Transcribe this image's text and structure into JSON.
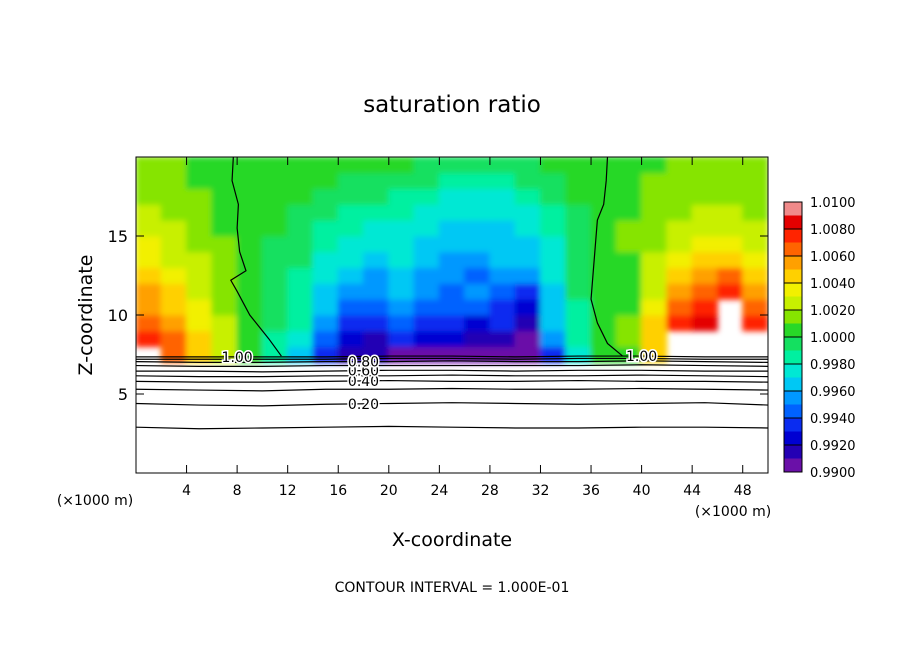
{
  "chart_data": {
    "type": "contour",
    "title": "saturation ratio",
    "x_label": "X-coordinate",
    "y_label": "Z-coordinate",
    "x_unit": "(×1000 m)",
    "y_unit": "(×1000 m)",
    "footer": "CONTOUR INTERVAL = 1.000E-01",
    "xlim": [
      0,
      50
    ],
    "ylim": [
      0,
      20
    ],
    "xticks": [
      4,
      8,
      12,
      16,
      20,
      24,
      28,
      32,
      36,
      40,
      44,
      48
    ],
    "yticks": [
      5,
      10,
      15
    ],
    "x": [
      1,
      3,
      5,
      7,
      9,
      11,
      13,
      15,
      17,
      19,
      21,
      23,
      25,
      27,
      29,
      31,
      33,
      35,
      37,
      39,
      41,
      43,
      45,
      47,
      49
    ],
    "y": [
      7.5,
      8.5,
      9.5,
      10.5,
      11.5,
      12.5,
      13.5,
      14.5,
      15.5,
      16.5,
      17.5,
      18.5,
      19.5
    ],
    "z": [
      [
        null,
        1.0065,
        1.0045,
        1.0028,
        1.0,
        0.9985,
        0.9965,
        0.9935,
        0.9915,
        0.9912,
        0.9905,
        0.9905,
        0.9908,
        0.9906,
        0.9905,
        0.9902,
        0.9935,
        0.9975,
        1.0,
        1.0008,
        1.004,
        null,
        null,
        null,
        null
      ],
      [
        1.0072,
        1.0062,
        1.004,
        1.0025,
        1.0001,
        0.9988,
        0.9975,
        0.9945,
        0.992,
        0.9918,
        0.993,
        0.9925,
        0.992,
        0.9915,
        0.9918,
        0.9905,
        0.995,
        0.998,
        1.0,
        1.001,
        1.0045,
        null,
        null,
        null,
        null
      ],
      [
        1.0066,
        1.0056,
        1.0038,
        1.0022,
        1.0001,
        0.999,
        0.998,
        0.9955,
        0.9932,
        0.9935,
        0.9945,
        0.9935,
        0.993,
        0.9928,
        0.9935,
        0.9915,
        0.996,
        0.9985,
        1.0,
        1.001,
        1.004,
        1.0078,
        1.008,
        null,
        1.0078
      ],
      [
        1.0058,
        1.0048,
        1.0033,
        1.0018,
        1.0002,
        0.9992,
        0.9983,
        0.9962,
        0.9945,
        0.9948,
        0.9952,
        0.9945,
        0.994,
        0.9942,
        0.9935,
        0.9925,
        0.9965,
        0.9988,
        1.0001,
        1.0009,
        1.003,
        1.0065,
        1.0072,
        null,
        1.0068
      ],
      [
        1.005,
        1.004,
        1.0028,
        1.0015,
        1.0002,
        0.9994,
        0.9985,
        0.9968,
        0.9955,
        0.995,
        0.9962,
        0.9952,
        0.9945,
        0.995,
        0.9945,
        0.9935,
        0.9968,
        0.999,
        1.0001,
        1.0008,
        1.0024,
        1.005,
        1.006,
        1.0075,
        1.0055
      ],
      [
        1.0042,
        1.0033,
        1.0024,
        1.0013,
        1.0003,
        0.9996,
        0.9988,
        0.9972,
        0.9962,
        0.9955,
        0.9968,
        0.9958,
        0.995,
        0.9948,
        0.9955,
        0.995,
        0.9972,
        0.9992,
        1.0002,
        1.0008,
        1.0022,
        1.004,
        1.005,
        1.006,
        1.0045
      ],
      [
        1.0036,
        1.0028,
        1.002,
        1.0012,
        1.0003,
        0.9998,
        0.999,
        0.9978,
        0.997,
        0.9965,
        0.9972,
        0.9962,
        0.9955,
        0.9955,
        0.996,
        0.996,
        0.9975,
        0.9994,
        1.0003,
        1.0009,
        1.002,
        1.0032,
        1.004,
        1.0045,
        1.0035
      ],
      [
        1.003,
        1.0024,
        1.0017,
        1.001,
        1.0004,
        0.9999,
        0.9993,
        0.9982,
        0.9976,
        0.9972,
        0.9975,
        0.9965,
        0.996,
        0.9962,
        0.9962,
        0.9965,
        0.9978,
        0.9995,
        1.0004,
        1.001,
        1.0018,
        1.0026,
        1.0032,
        1.0035,
        1.0028
      ],
      [
        1.0025,
        1.002,
        1.0014,
        1.0009,
        1.0004,
        1.0,
        0.9995,
        0.9988,
        0.9982,
        0.9978,
        0.9978,
        0.997,
        0.9966,
        0.9966,
        0.9966,
        0.997,
        0.9982,
        0.9997,
        1.0005,
        1.001,
        1.0016,
        1.0022,
        1.0026,
        1.0028,
        1.0022
      ],
      [
        1.002,
        1.0016,
        1.0012,
        1.0008,
        1.0004,
        1.0001,
        0.9998,
        0.9993,
        0.9988,
        0.9984,
        0.9982,
        0.9976,
        0.9972,
        0.997,
        0.997,
        0.9976,
        0.9987,
        0.9999,
        1.0005,
        1.0009,
        1.0014,
        1.0018,
        1.0021,
        1.0022,
        1.0018
      ],
      [
        1.0016,
        1.0013,
        1.001,
        1.0007,
        1.0004,
        1.0002,
        1.0,
        0.9997,
        0.9994,
        0.999,
        0.9987,
        0.9983,
        0.9978,
        0.9975,
        0.9976,
        0.9982,
        0.9992,
        1.0001,
        1.0005,
        1.0008,
        1.0012,
        1.0015,
        1.0017,
        1.0018,
        1.0015
      ],
      [
        1.0014,
        1.0012,
        1.0009,
        1.0006,
        1.0003,
        1.0002,
        1.0002,
        1.0,
        0.9998,
        0.9996,
        0.9993,
        0.999,
        0.9987,
        0.9985,
        0.9986,
        0.999,
        0.9996,
        1.0002,
        1.0004,
        1.0007,
        1.001,
        1.0012,
        1.0014,
        1.0014,
        1.0012
      ],
      [
        1.0012,
        1.001,
        1.0008,
        1.0005,
        1.0003,
        1.0003,
        1.0003,
        1.0003,
        1.0002,
        1.0001,
        1.0,
        0.9998,
        0.9996,
        0.9995,
        0.9996,
        0.9998,
        1.0001,
        1.0003,
        1.0004,
        1.0006,
        1.0008,
        1.001,
        1.0012,
        1.0012,
        1.001
      ]
    ],
    "colorbar": {
      "levels": [
        0.99,
        0.991,
        0.992,
        0.993,
        0.994,
        0.995,
        0.996,
        0.997,
        0.998,
        0.999,
        1.0,
        1.001,
        1.002,
        1.003,
        1.004,
        1.005,
        1.006,
        1.007,
        1.008,
        1.009,
        1.01
      ],
      "colors": [
        "#6a10a8",
        "#2400b4",
        "#0000d2",
        "#0a2cf0",
        "#0062ff",
        "#0098ff",
        "#00c8f4",
        "#00e8d4",
        "#00f0a0",
        "#14e060",
        "#28d828",
        "#86e400",
        "#c8f000",
        "#f2f000",
        "#ffd000",
        "#ffa000",
        "#ff6400",
        "#ff2400",
        "#e40000",
        "#f08a8a"
      ],
      "ticks": [
        {
          "value": 0.99,
          "label": "0.9900"
        },
        {
          "value": 0.992,
          "label": "0.9920"
        },
        {
          "value": 0.994,
          "label": "0.9940"
        },
        {
          "value": 0.996,
          "label": "0.9960"
        },
        {
          "value": 0.998,
          "label": "0.9980"
        },
        {
          "value": 1.0,
          "label": "1.0000"
        },
        {
          "value": 1.002,
          "label": "1.0020"
        },
        {
          "value": 1.004,
          "label": "1.0040"
        },
        {
          "value": 1.006,
          "label": "1.0060"
        },
        {
          "value": 1.008,
          "label": "1.0080"
        },
        {
          "value": 1.01,
          "label": "1.0100"
        }
      ]
    },
    "contours": [
      {
        "x": [
          0,
          5,
          10,
          15,
          20,
          25,
          30,
          35,
          40,
          45,
          50
        ],
        "y": [
          2.9,
          2.8,
          2.85,
          2.9,
          2.95,
          2.9,
          2.85,
          2.85,
          2.9,
          2.9,
          2.85
        ]
      },
      {
        "label": "0.20",
        "x": [
          0,
          5,
          10,
          15,
          20,
          25,
          30,
          35,
          40,
          45,
          50
        ],
        "y": [
          4.4,
          4.3,
          4.25,
          4.35,
          4.4,
          4.45,
          4.4,
          4.35,
          4.4,
          4.45,
          4.3
        ]
      },
      {
        "x": [
          0,
          5,
          10,
          15,
          20,
          25,
          30,
          35,
          40,
          45,
          50
        ],
        "y": [
          5.3,
          5.25,
          5.2,
          5.3,
          5.3,
          5.35,
          5.3,
          5.3,
          5.35,
          5.3,
          5.25
        ]
      },
      {
        "label": "0.40",
        "x": [
          0,
          5,
          10,
          15,
          20,
          25,
          30,
          35,
          40,
          45,
          50
        ],
        "y": [
          5.8,
          5.75,
          5.75,
          5.8,
          5.85,
          5.8,
          5.8,
          5.85,
          5.8,
          5.8,
          5.75
        ]
      },
      {
        "x": [
          0,
          5,
          10,
          15,
          20,
          25,
          30,
          35,
          40,
          45,
          50
        ],
        "y": [
          6.15,
          6.1,
          6.1,
          6.15,
          6.15,
          6.2,
          6.15,
          6.15,
          6.2,
          6.15,
          6.1
        ]
      },
      {
        "label": "0.60",
        "x": [
          0,
          5,
          10,
          15,
          20,
          25,
          30,
          35,
          40,
          45,
          50
        ],
        "y": [
          6.45,
          6.45,
          6.4,
          6.45,
          6.5,
          6.5,
          6.45,
          6.5,
          6.5,
          6.45,
          6.45
        ]
      },
      {
        "x": [
          0,
          5,
          10,
          15,
          20,
          25,
          30,
          35,
          40,
          45,
          50
        ],
        "y": [
          6.8,
          6.75,
          6.75,
          6.8,
          6.8,
          6.8,
          6.8,
          6.8,
          6.85,
          6.8,
          6.75
        ]
      },
      {
        "label": "0.80",
        "x": [
          0,
          5,
          10,
          15,
          20,
          25,
          30,
          35,
          40,
          45,
          50
        ],
        "y": [
          7.05,
          7.0,
          7.0,
          7.05,
          7.05,
          7.1,
          7.05,
          7.05,
          7.1,
          7.05,
          7.0
        ]
      },
      {
        "x": [
          0,
          5,
          10,
          15,
          20,
          25,
          30,
          35,
          40,
          45,
          50
        ],
        "y": [
          7.2,
          7.2,
          7.2,
          7.2,
          7.25,
          7.25,
          7.2,
          7.25,
          7.25,
          7.2,
          7.2
        ]
      },
      {
        "label": "1.00",
        "x": [
          0,
          5,
          10,
          15,
          20,
          25,
          30,
          35,
          40,
          45,
          50
        ],
        "y": [
          7.35,
          7.35,
          7.35,
          7.35,
          7.4,
          7.4,
          7.35,
          7.4,
          7.4,
          7.35,
          7.35
        ]
      },
      {
        "x": [
          7.7,
          7.6,
          8.1,
          8.0,
          8.2,
          8.7,
          7.5,
          8.0,
          9.0,
          10.5,
          11.5
        ],
        "y": [
          20,
          18.5,
          17,
          15.5,
          14,
          12.8,
          12.2,
          11.5,
          10,
          8.5,
          7.4
        ]
      },
      {
        "x": [
          37.3,
          37.2,
          37.0,
          36.5,
          36.4,
          36.2,
          36.0,
          36.5,
          37.3,
          38.5
        ],
        "y": [
          20,
          18.5,
          17,
          16,
          15,
          13,
          11,
          9.5,
          8.2,
          7.4
        ]
      }
    ]
  }
}
